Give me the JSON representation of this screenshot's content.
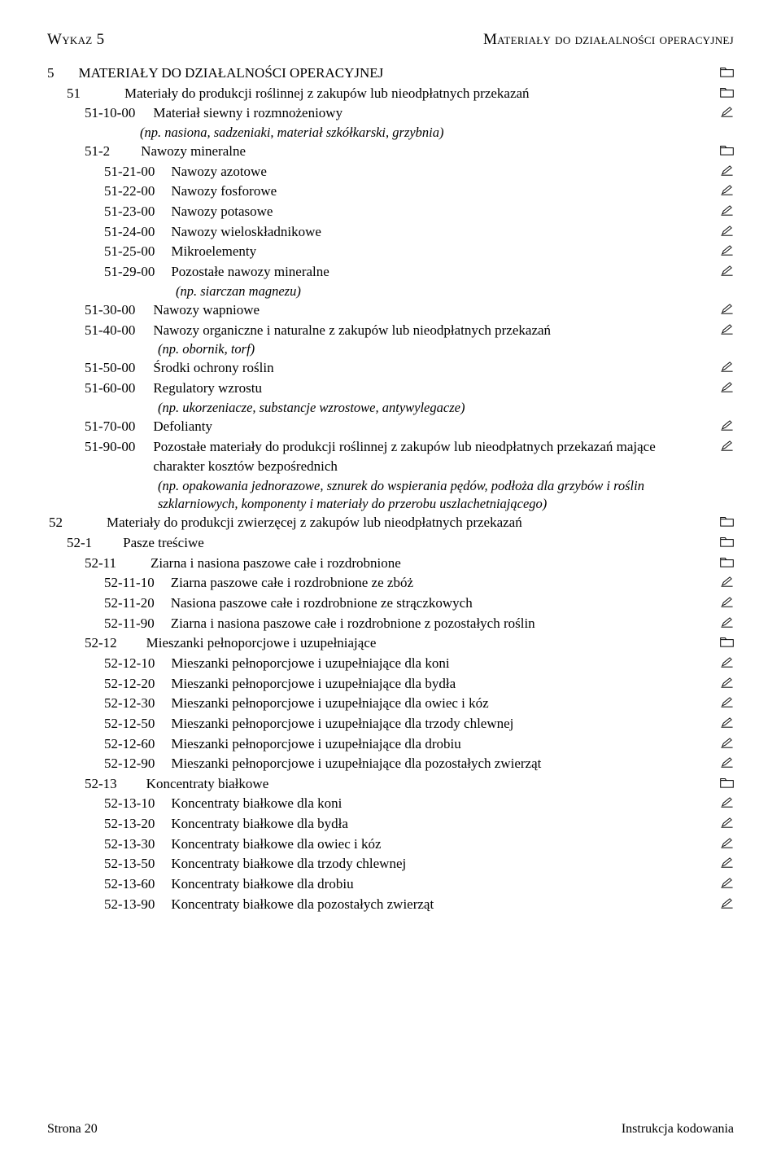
{
  "header": {
    "left": "Wykaz 5",
    "right": "Materiały do działalności operacyjnej"
  },
  "indent": {
    "d0": 0,
    "d1": 24,
    "d2": 46,
    "d3": 70,
    "d4": 95
  },
  "gap": {
    "g5": 30,
    "g51": 54,
    "g5110": 22,
    "g512": 38,
    "g5121": 20,
    "g5211": 42,
    "g52111": 20,
    "g5212": 36,
    "g52121": 20
  },
  "icons": {
    "folder": "folder",
    "pen": "pen"
  },
  "items": [
    {
      "depth": "d0",
      "code": "5",
      "gap": "g5",
      "text": "MATERIAŁY DO DZIAŁALNOŚCI OPERACYJNEJ",
      "icon": "folder"
    },
    {
      "depth": "d1",
      "code": "51",
      "gap": "g51",
      "text": "Materiały do produkcji roślinnej z zakupów lub nieodpłatnych przekazań",
      "icon": "folder"
    },
    {
      "depth": "d2",
      "code": "51-10-00",
      "gap": "g5110",
      "text": "Materiał siewny i rozmnożeniowy",
      "icon": "pen"
    },
    {
      "depth": "d2",
      "note_indent": 114,
      "note": "(np. nasiona, sadzeniaki, materiał szkółkarski, grzybnia)"
    },
    {
      "depth": "d2",
      "code": "51-2",
      "gap": "g512",
      "text": "Nawozy mineralne",
      "icon": "folder"
    },
    {
      "depth": "d3",
      "code": "51-21-00",
      "gap": "g5121",
      "text": "Nawozy azotowe",
      "icon": "pen"
    },
    {
      "depth": "d3",
      "code": "51-22-00",
      "gap": "g5121",
      "text": "Nawozy fosforowe",
      "icon": "pen"
    },
    {
      "depth": "d3",
      "code": "51-23-00",
      "gap": "g5121",
      "text": "Nawozy potasowe",
      "icon": "pen"
    },
    {
      "depth": "d3",
      "code": "51-24-00",
      "gap": "g5121",
      "text": "Nawozy wieloskładnikowe",
      "icon": "pen"
    },
    {
      "depth": "d3",
      "code": "51-25-00",
      "gap": "g5121",
      "text": "Mikroelementy",
      "icon": "pen"
    },
    {
      "depth": "d3",
      "code": "51-29-00",
      "gap": "g5121",
      "text": "Pozostałe nawozy mineralne",
      "icon": "pen"
    },
    {
      "depth": "d3",
      "note_indent": 158,
      "note": "(np. siarczan magnezu)"
    },
    {
      "depth": "d2",
      "code": "51-30-00",
      "gap": "g5110",
      "text": "Nawozy wapniowe",
      "icon": "pen"
    },
    {
      "depth": "d2",
      "code": "51-40-00",
      "gap": "g5110",
      "text": "Nawozy organiczne i naturalne z zakupów lub nieodpłatnych przekazań",
      "icon": "pen"
    },
    {
      "depth": "d2",
      "note_indent": 136,
      "note": "(np. obornik, torf)"
    },
    {
      "depth": "d2",
      "code": "51-50-00",
      "gap": "g5110",
      "text": "Środki ochrony roślin",
      "icon": "pen"
    },
    {
      "depth": "d2",
      "code": "51-60-00",
      "gap": "g5110",
      "text": "Regulatory wzrostu",
      "icon": "pen"
    },
    {
      "depth": "d2",
      "note_indent": 136,
      "note": "(np. ukorzeniacze, substancje wzrostowe, antywylegacze)"
    },
    {
      "depth": "d2",
      "code": "51-70-00",
      "gap": "g5110",
      "text": "Defolianty",
      "icon": "pen"
    },
    {
      "depth": "d2",
      "code": "51-90-00",
      "gap": "g5110",
      "text": "Pozostałe materiały do produkcji roślinnej z zakupów lub nieodpłatnych przekazań mające charakter kosztów bezpośrednich",
      "icon": "pen"
    },
    {
      "depth": "d2",
      "note_indent": 136,
      "note": "(np. opakowania jednorazowe, sznurek do wspierania pędów, podłoża dla grzybów i roślin szklarniowych, komponenty i materiały do przerobu uszlachetniającego)"
    },
    {
      "depth": "d0",
      "code": "52",
      "gap": "g51",
      "text": "Materiały do produkcji zwierzęcej z zakupów lub nieodpłatnych przekazań",
      "icon": "folder",
      "pad_left": 2
    },
    {
      "depth": "d1",
      "code": "52-1",
      "gap": "g512",
      "text": "Pasze treściwe",
      "icon": "folder"
    },
    {
      "depth": "d2",
      "code": "52-11",
      "gap": "g5211",
      "text": "Ziarna i nasiona paszowe całe i rozdrobnione",
      "icon": "folder"
    },
    {
      "depth": "d3",
      "code": "52-11-10",
      "gap": "g52111",
      "text": "Ziarna paszowe całe i rozdrobnione ze zbóż",
      "icon": "pen"
    },
    {
      "depth": "d3",
      "code": "52-11-20",
      "gap": "g52111",
      "text": "Nasiona paszowe całe i rozdrobnione ze strączkowych",
      "icon": "pen"
    },
    {
      "depth": "d3",
      "code": "52-11-90",
      "gap": "g52111",
      "text": "Ziarna i nasiona paszowe całe i rozdrobnione z pozostałych roślin",
      "icon": "pen"
    },
    {
      "depth": "d2",
      "code": "52-12",
      "gap": "g5212",
      "text": "Mieszanki pełnoporcjowe i uzupełniające",
      "icon": "folder"
    },
    {
      "depth": "d3",
      "code": "52-12-10",
      "gap": "g52121",
      "text": "Mieszanki pełnoporcjowe i uzupełniające dla koni",
      "icon": "pen"
    },
    {
      "depth": "d3",
      "code": "52-12-20",
      "gap": "g52121",
      "text": "Mieszanki pełnoporcjowe i uzupełniające dla bydła",
      "icon": "pen"
    },
    {
      "depth": "d3",
      "code": "52-12-30",
      "gap": "g52121",
      "text": "Mieszanki pełnoporcjowe i uzupełniające dla owiec i kóz",
      "icon": "pen"
    },
    {
      "depth": "d3",
      "code": "52-12-50",
      "gap": "g52121",
      "text": "Mieszanki pełnoporcjowe i uzupełniające dla trzody chlewnej",
      "icon": "pen"
    },
    {
      "depth": "d3",
      "code": "52-12-60",
      "gap": "g52121",
      "text": "Mieszanki pełnoporcjowe i uzupełniające dla drobiu",
      "icon": "pen"
    },
    {
      "depth": "d3",
      "code": "52-12-90",
      "gap": "g52121",
      "text": "Mieszanki pełnoporcjowe i uzupełniające dla pozostałych zwierząt",
      "icon": "pen"
    },
    {
      "depth": "d2",
      "code": "52-13",
      "gap": "g5212",
      "text": "Koncentraty białkowe",
      "icon": "folder"
    },
    {
      "depth": "d3",
      "code": "52-13-10",
      "gap": "g52121",
      "text": "Koncentraty białkowe dla koni",
      "icon": "pen"
    },
    {
      "depth": "d3",
      "code": "52-13-20",
      "gap": "g52121",
      "text": "Koncentraty białkowe dla bydła",
      "icon": "pen"
    },
    {
      "depth": "d3",
      "code": "52-13-30",
      "gap": "g52121",
      "text": "Koncentraty białkowe dla owiec i kóz",
      "icon": "pen"
    },
    {
      "depth": "d3",
      "code": "52-13-50",
      "gap": "g52121",
      "text": "Koncentraty białkowe dla trzody chlewnej",
      "icon": "pen"
    },
    {
      "depth": "d3",
      "code": "52-13-60",
      "gap": "g52121",
      "text": "Koncentraty białkowe dla drobiu",
      "icon": "pen"
    },
    {
      "depth": "d3",
      "code": "52-13-90",
      "gap": "g52121",
      "text": "Koncentraty białkowe dla pozostałych zwierząt",
      "icon": "pen"
    }
  ],
  "footer": {
    "left": "Strona 20",
    "right": "Instrukcja kodowania"
  }
}
